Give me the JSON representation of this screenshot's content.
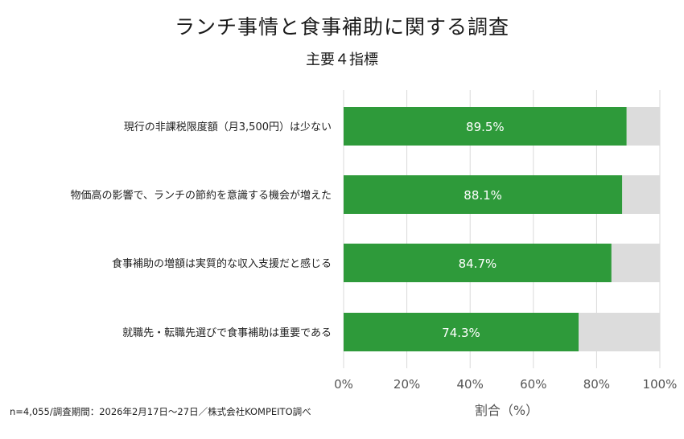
{
  "chart_data": {
    "type": "bar",
    "orientation": "horizontal",
    "stacked_to_100": true,
    "title": "ランチ事情と食事補助に関する調査",
    "subtitle": "主要４指標",
    "categories": [
      "現行の非課税限度額（月3,500円）は少ない",
      "物価高の影響で、ランチの節約を意識する機会が増えた",
      "食事補助の増額は実質的な収入支援だと感じる",
      "就職先・転職先選びで食事補助は重要である"
    ],
    "series": [
      {
        "values": [
          89.5,
          88.1,
          84.7,
          74.3
        ],
        "color": "#2e9a3a"
      },
      {
        "values": [
          10.5,
          11.9,
          15.3,
          25.7
        ],
        "color": "#dcdcdc"
      }
    ],
    "data_labels": [
      "89.5%",
      "88.1%",
      "84.7%",
      "74.3%"
    ],
    "xlabel": "割合（%）",
    "ylabel": "",
    "xlim": [
      0,
      100
    ],
    "xticks": [
      0,
      20,
      40,
      60,
      80,
      100
    ],
    "xtick_labels": [
      "0%",
      "20%",
      "40%",
      "60%",
      "80%",
      "100%"
    ],
    "grid": "vertical",
    "legend": "none"
  },
  "footnote": "n=4,055/調査期間：2026年2月17日〜27日／株式会社KOMPEITO調べ"
}
